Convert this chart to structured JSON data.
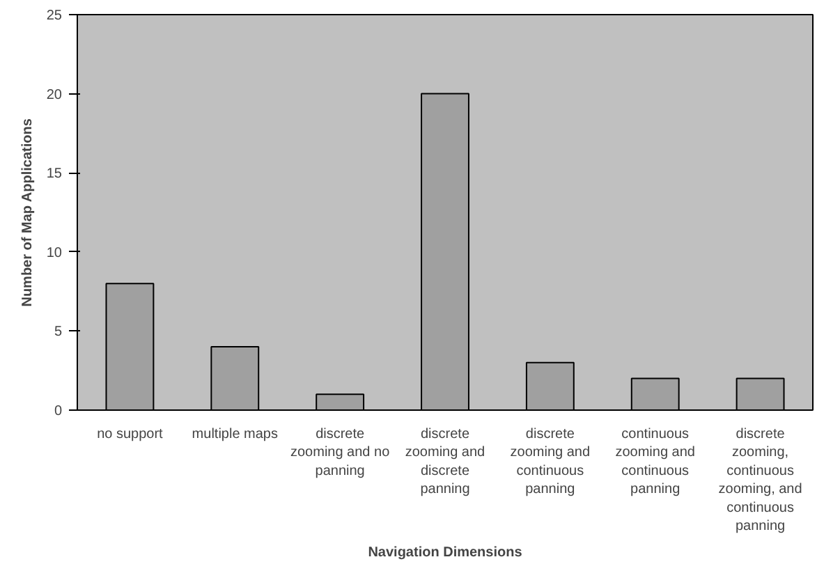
{
  "chart_data": {
    "type": "bar",
    "xlabel": "Navigation Dimensions",
    "ylabel": "Number of Map Applications",
    "categories": [
      "no support",
      "multiple maps",
      "discrete zooming and no panning",
      "discrete zooming and discrete panning",
      "discrete zooming and continuous panning",
      "continuous zooming and continuous panning",
      "discrete zooming, continuous zooming, and continuous panning"
    ],
    "values": [
      8,
      4,
      1,
      20,
      3,
      2,
      2
    ],
    "color": "#a0a0a0",
    "ylim": [
      0,
      25
    ],
    "yticks": [
      0,
      5,
      10,
      15,
      20,
      25
    ],
    "grid": false
  }
}
